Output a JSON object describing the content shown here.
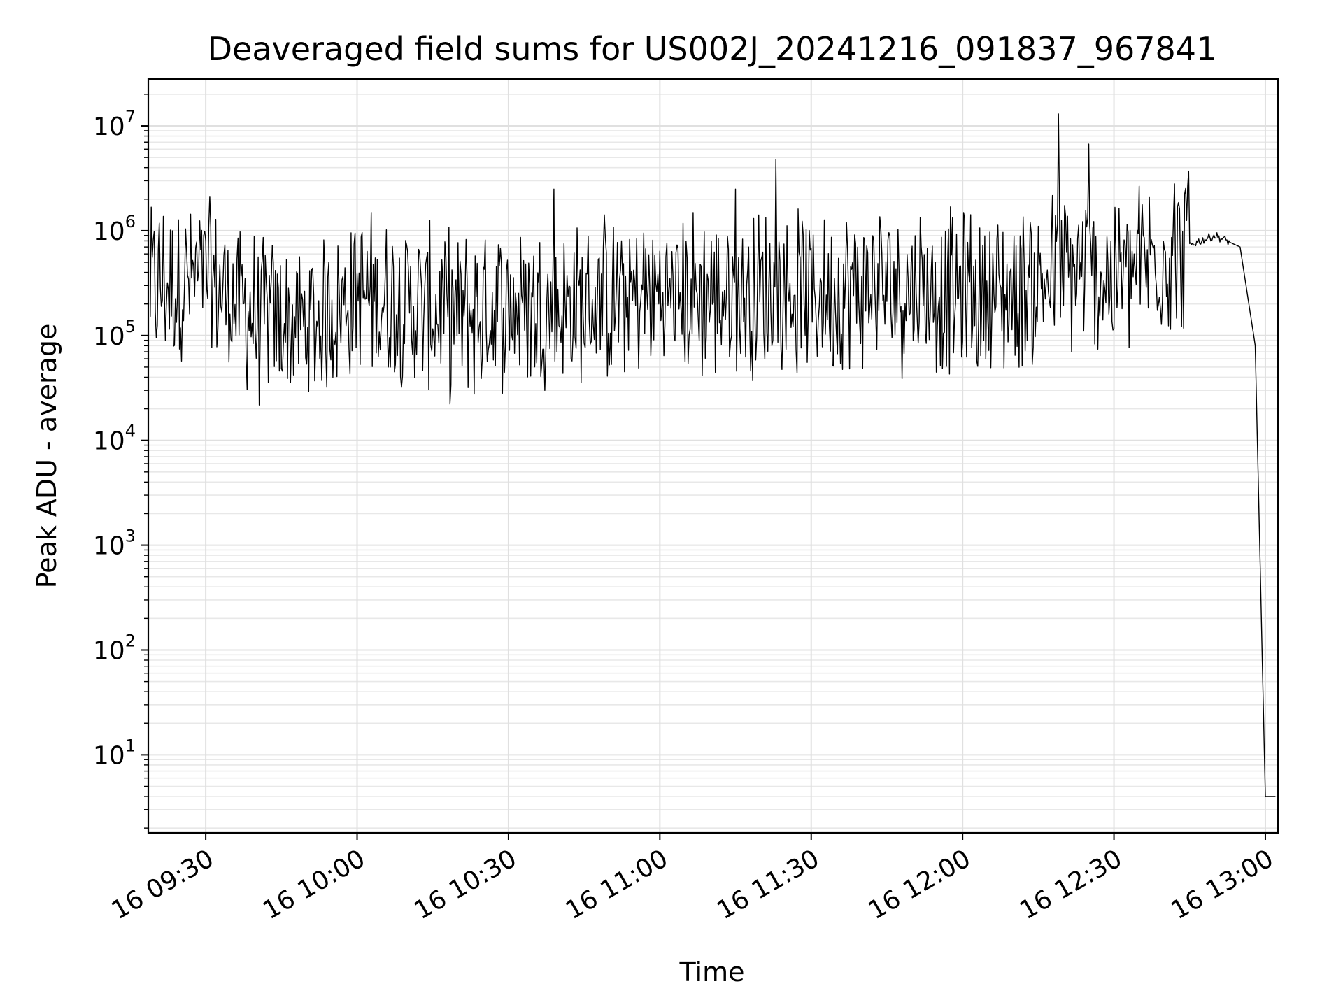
{
  "chart_data": {
    "type": "line",
    "title": "Deaveraged field sums for US002J_20241216_091837_967841",
    "xlabel": "Time",
    "ylabel": "Peak ADU - average",
    "yscale": "log",
    "ylim": [
      1.8,
      28000000
    ],
    "xlim": [
      "2024-12-16 09:18:37",
      "2024-12-16 13:02:30"
    ],
    "x_ticks": [
      "16 09:30",
      "16 10:00",
      "16 10:30",
      "16 11:00",
      "16 11:30",
      "16 12:00",
      "16 12:30",
      "16 13:00"
    ],
    "y_ticks": [
      10,
      100,
      1000,
      10000,
      100000,
      1000000,
      10000000
    ],
    "y_tick_labels": [
      {
        "base": "10",
        "exp": "1"
      },
      {
        "base": "10",
        "exp": "2"
      },
      {
        "base": "10",
        "exp": "3"
      },
      {
        "base": "10",
        "exp": "4"
      },
      {
        "base": "10",
        "exp": "5"
      },
      {
        "base": "10",
        "exp": "6"
      },
      {
        "base": "10",
        "exp": "7"
      }
    ],
    "grid": true,
    "series": [
      {
        "color": "#000000",
        "x": [
          "2024-12-16 09:19",
          "2024-12-16 09:30",
          "2024-12-16 09:40",
          "2024-12-16 09:50",
          "2024-12-16 10:00",
          "2024-12-16 10:10",
          "2024-12-16 10:20",
          "2024-12-16 10:30",
          "2024-12-16 10:40",
          "2024-12-16 10:50",
          "2024-12-16 11:00",
          "2024-12-16 11:10",
          "2024-12-16 11:20",
          "2024-12-16 11:30",
          "2024-12-16 11:40",
          "2024-12-16 11:50",
          "2024-12-16 12:00",
          "2024-12-16 12:10",
          "2024-12-16 12:20",
          "2024-12-16 12:30",
          "2024-12-16 12:40",
          "2024-12-16 12:50",
          "2024-12-16 12:55",
          "2024-12-16 12:58",
          "2024-12-16 13:00",
          "2024-12-16 13:02"
        ],
        "y": [
          300000,
          350000,
          150000,
          120000,
          250000,
          200000,
          150000,
          200000,
          180000,
          220000,
          250000,
          240000,
          260000,
          250000,
          280000,
          300000,
          250000,
          250000,
          400000,
          350000,
          600000,
          900000,
          700000,
          80000,
          4,
          4
        ],
        "spikes": [
          {
            "x": "2024-12-16 12:19",
            "y": 13000000
          },
          {
            "x": "2024-12-16 12:25",
            "y": 6700000
          },
          {
            "x": "2024-12-16 11:23",
            "y": 4800000
          },
          {
            "x": "2024-12-16 12:42",
            "y": 2800000
          },
          {
            "x": "2024-12-16 10:39",
            "y": 2500000
          },
          {
            "x": "2024-12-16 11:15",
            "y": 2500000
          }
        ]
      }
    ]
  }
}
